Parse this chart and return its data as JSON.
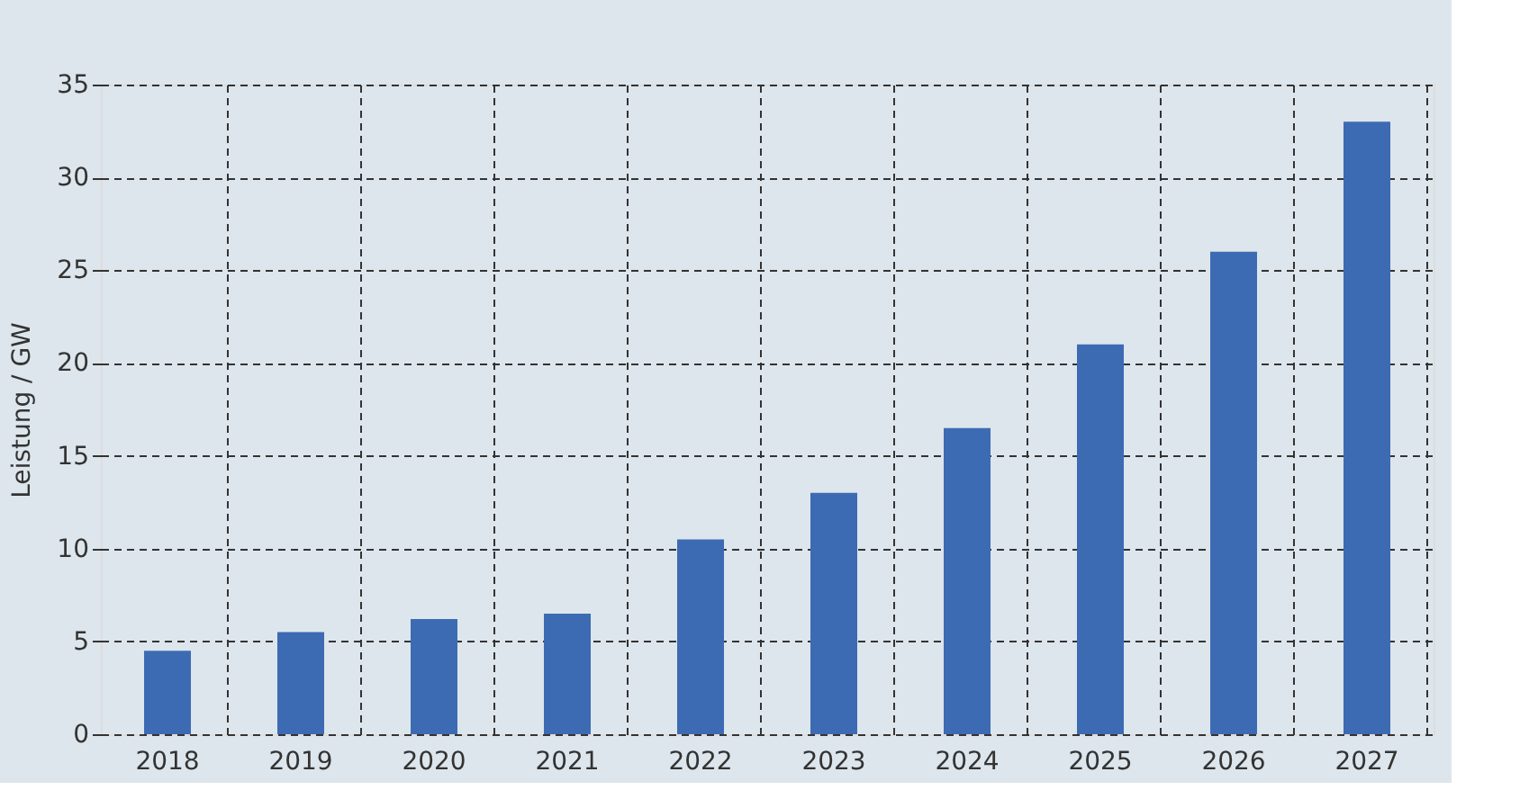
{
  "chart_data": {
    "type": "bar",
    "ylabel": "Leistung / GW",
    "categories": [
      "2018",
      "2019",
      "2020",
      "2021",
      "2022",
      "2023",
      "2024",
      "2025",
      "2026",
      "2027"
    ],
    "values": [
      4.5,
      5.5,
      6.2,
      6.5,
      10.5,
      13,
      16.5,
      21,
      26,
      33
    ],
    "color": "#3d6bb3",
    "ylim": [
      0,
      35
    ],
    "yticks": [
      0,
      5,
      10,
      15,
      20,
      25,
      30,
      35
    ],
    "grid": true
  }
}
